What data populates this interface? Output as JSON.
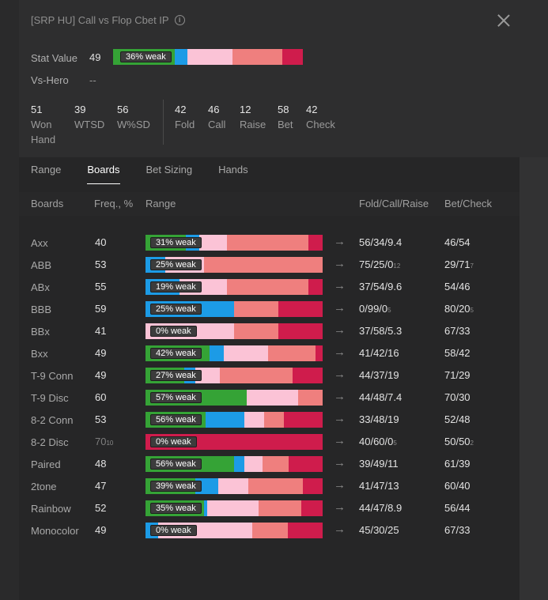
{
  "title": "[SRP HU] Call vs Flop Cbet IP",
  "stat_value": {
    "label": "Stat Value",
    "value": "49",
    "bar": {
      "weak_label": "36% weak",
      "segments": [
        {
          "color": "#35a336",
          "pct": 33
        },
        {
          "color": "#1c9be6",
          "pct": 7
        },
        {
          "color": "#fbc3d6",
          "pct": 24
        },
        {
          "color": "#ef7f7e",
          "pct": 27
        },
        {
          "color": "#cf1c4c",
          "pct": 11
        }
      ]
    }
  },
  "vs_hero": {
    "label": "Vs-Hero",
    "value": "--"
  },
  "stats_left": [
    {
      "num": "51",
      "label": "Won\nHand"
    },
    {
      "num": "39",
      "label": "WTSD"
    },
    {
      "num": "56",
      "label": "W%SD"
    }
  ],
  "stats_right": [
    {
      "num": "42",
      "label": "Fold"
    },
    {
      "num": "46",
      "label": "Call"
    },
    {
      "num": "12",
      "label": "Raise"
    },
    {
      "num": "58",
      "label": "Bet"
    },
    {
      "num": "42",
      "label": "Check"
    }
  ],
  "tabs": [
    "Range",
    "Boards",
    "Bet Sizing",
    "Hands"
  ],
  "active_tab": 1,
  "columns": {
    "boards": "Boards",
    "freq": "Freq., %",
    "range": "Range",
    "fcr": "Fold/Call/Raise",
    "bc": "Bet/Check"
  },
  "colors": {
    "green": "#35a336",
    "blue": "#1c9be6",
    "pink": "#fbc3d6",
    "salmon": "#ef7f7e",
    "crimson": "#cf1c4c"
  },
  "rows": [
    {
      "name": "Axx",
      "freq": "40",
      "freq_sub": "",
      "weak": "31% weak",
      "seg": [
        23,
        8,
        16,
        47,
        8
      ],
      "fcr": "56/34/9.4",
      "fcr_sub": "",
      "bc": "46/54",
      "bc_sub": ""
    },
    {
      "name": "ABB",
      "freq": "53",
      "freq_sub": "",
      "weak": "25% weak",
      "seg": [
        0,
        11,
        22,
        67,
        0
      ],
      "fcr": "75/25/0",
      "fcr_sub": "12",
      "bc": "29/71",
      "bc_sub": "7"
    },
    {
      "name": "ABx",
      "freq": "55",
      "freq_sub": "",
      "weak": "19% weak",
      "seg": [
        0,
        19,
        27,
        46,
        8
      ],
      "fcr": "37/54/9.6",
      "fcr_sub": "",
      "bc": "54/46",
      "bc_sub": ""
    },
    {
      "name": "BBB",
      "freq": "59",
      "freq_sub": "",
      "weak": "25% weak",
      "seg": [
        0,
        50,
        0,
        25,
        25
      ],
      "fcr": "0/99/0",
      "fcr_sub": "5",
      "bc": "80/20",
      "bc_sub": "5"
    },
    {
      "name": "BBx",
      "freq": "41",
      "freq_sub": "",
      "weak": "0% weak",
      "seg": [
        0,
        0,
        50,
        25,
        25
      ],
      "fcr": "37/58/5.3",
      "fcr_sub": "",
      "bc": "67/33",
      "bc_sub": ""
    },
    {
      "name": "Bxx",
      "freq": "49",
      "freq_sub": "",
      "weak": "42% weak",
      "seg": [
        36,
        8,
        25,
        27,
        4
      ],
      "fcr": "41/42/16",
      "fcr_sub": "",
      "bc": "58/42",
      "bc_sub": ""
    },
    {
      "name": "T-9 Conn",
      "freq": "49",
      "freq_sub": "",
      "weak": "27% weak",
      "seg": [
        22,
        6,
        14,
        41,
        17
      ],
      "fcr": "44/37/19",
      "fcr_sub": "",
      "bc": "71/29",
      "bc_sub": ""
    },
    {
      "name": "T-9 Disc",
      "freq": "60",
      "freq_sub": "",
      "weak": "57% weak",
      "seg": [
        57,
        0,
        29,
        14,
        0
      ],
      "fcr": "44/48/7.4",
      "fcr_sub": "",
      "bc": "70/30",
      "bc_sub": ""
    },
    {
      "name": "8-2 Conn",
      "freq": "53",
      "freq_sub": "",
      "weak": "56% weak",
      "seg": [
        34,
        22,
        11,
        11,
        22
      ],
      "fcr": "33/48/19",
      "fcr_sub": "",
      "bc": "52/48",
      "bc_sub": ""
    },
    {
      "name": "8-2 Disc",
      "freq": "70",
      "freq_sub": "10",
      "weak": "0% weak",
      "seg": [
        0,
        0,
        0,
        0,
        100
      ],
      "fcr": "40/60/0",
      "fcr_sub": "5",
      "bc": "50/50",
      "bc_sub": "2"
    },
    {
      "name": "Paired",
      "freq": "48",
      "freq_sub": "",
      "weak": "56% weak",
      "seg": [
        50,
        6,
        10,
        15,
        19
      ],
      "fcr": "39/49/11",
      "fcr_sub": "",
      "bc": "61/39",
      "bc_sub": ""
    },
    {
      "name": "2tone",
      "freq": "47",
      "freq_sub": "",
      "weak": "39% weak",
      "seg": [
        28,
        13,
        17,
        31,
        11
      ],
      "fcr": "41/47/13",
      "fcr_sub": "",
      "bc": "60/40",
      "bc_sub": ""
    },
    {
      "name": "Rainbow",
      "freq": "52",
      "freq_sub": "",
      "weak": "35% weak",
      "seg": [
        33,
        2,
        29,
        24,
        12
      ],
      "fcr": "44/47/8.9",
      "fcr_sub": "",
      "bc": "56/44",
      "bc_sub": ""
    },
    {
      "name": "Monocolor",
      "freq": "49",
      "freq_sub": "",
      "weak": "0% weak",
      "seg": [
        0,
        7,
        54,
        20,
        20
      ],
      "fcr": "45/30/25",
      "fcr_sub": "",
      "bc": "67/33",
      "bc_sub": ""
    }
  ]
}
